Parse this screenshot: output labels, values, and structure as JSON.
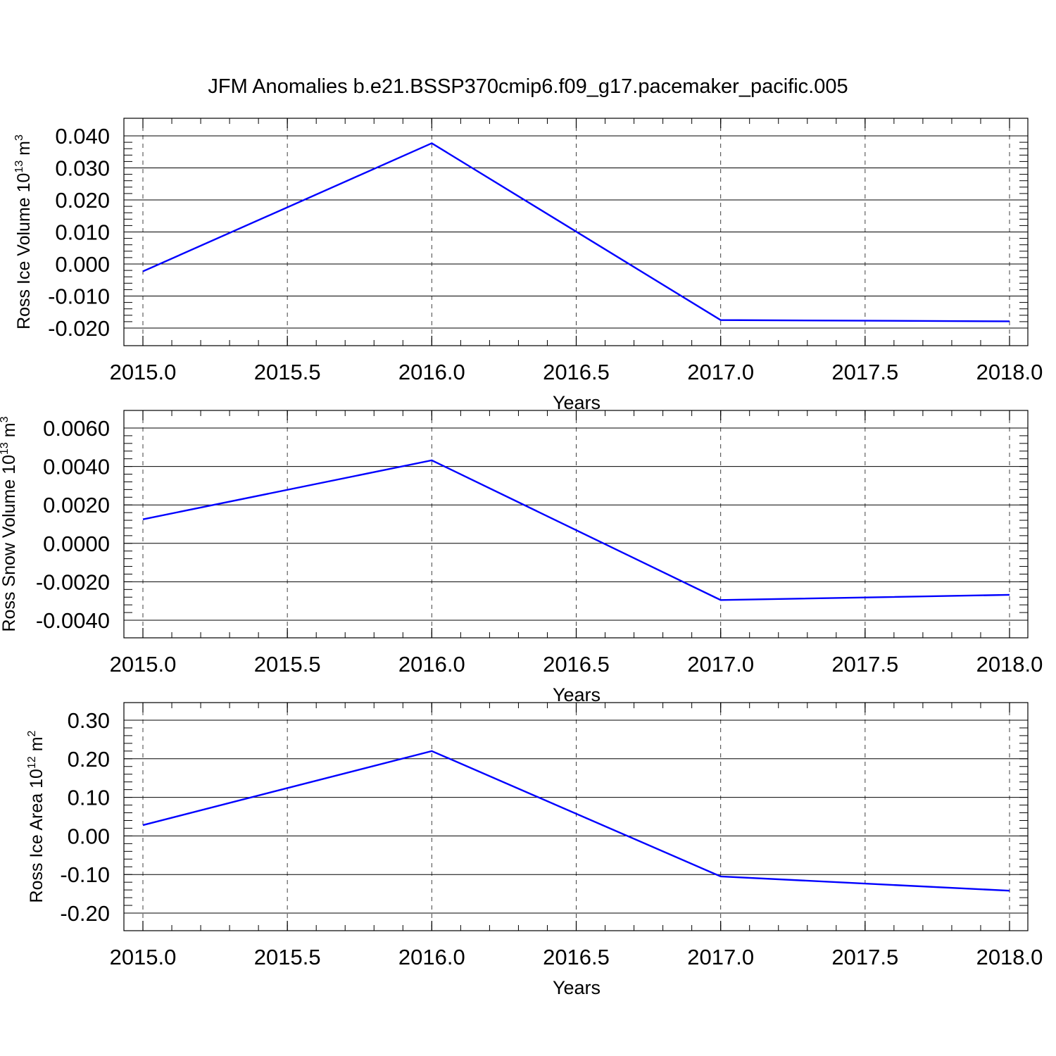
{
  "figure": {
    "title": "JFM Anomalies b.e21.BSSP370cmip6.f09_g17.pacemaker_pacific.005"
  },
  "chart_data": [
    {
      "type": "line",
      "title": "",
      "xlabel": "Years",
      "ylabel": {
        "text": "Ross Ice Volume 10",
        "sup1": "13",
        "mid": " m",
        "sup2": "3"
      },
      "xlim": [
        2015.0,
        2018.0
      ],
      "ylim": [
        -0.02,
        0.04
      ],
      "xticks": [
        2015.0,
        2015.5,
        2016.0,
        2016.5,
        2017.0,
        2017.5,
        2018.0
      ],
      "xtick_labels": [
        "2015.0",
        "2015.5",
        "2016.0",
        "2016.5",
        "2017.0",
        "2017.5",
        "2018.0"
      ],
      "yticks": [
        -0.02,
        -0.01,
        0.0,
        0.01,
        0.02,
        0.03,
        0.04
      ],
      "ytick_labels": [
        "-0.020",
        "-0.010",
        "0.000",
        "0.010",
        "0.020",
        "0.030",
        "0.040"
      ],
      "grid": "vertical dashed",
      "series": [
        {
          "color": "#0000ff",
          "x": [
            2015,
            2016,
            2017,
            2018
          ],
          "y": [
            -0.0023,
            0.0377,
            -0.0175,
            -0.0179
          ]
        }
      ]
    },
    {
      "type": "line",
      "title": "",
      "xlabel": "Years",
      "ylabel": {
        "text": "Ross Snow Volume 10",
        "sup1": "13",
        "mid": " m",
        "sup2": "3"
      },
      "xlim": [
        2015.0,
        2018.0
      ],
      "ylim": [
        -0.004,
        0.006
      ],
      "xticks": [
        2015.0,
        2015.5,
        2016.0,
        2016.5,
        2017.0,
        2017.5,
        2018.0
      ],
      "xtick_labels": [
        "2015.0",
        "2015.5",
        "2016.0",
        "2016.5",
        "2017.0",
        "2017.5",
        "2018.0"
      ],
      "yticks": [
        -0.004,
        -0.002,
        0.0,
        0.002,
        0.004,
        0.006
      ],
      "ytick_labels": [
        "-0.0040",
        "-0.0020",
        "0.0000",
        "0.0020",
        "0.0040",
        "0.0060"
      ],
      "grid": "vertical dashed",
      "series": [
        {
          "color": "#0000ff",
          "x": [
            2015,
            2016,
            2017,
            2018
          ],
          "y": [
            0.00125,
            0.00432,
            -0.00295,
            -0.00268
          ]
        }
      ]
    },
    {
      "type": "line",
      "title": "",
      "xlabel": "Years",
      "ylabel": {
        "text": "Ross Ice Area 10",
        "sup1": "12",
        "mid": " m",
        "sup2": "2"
      },
      "xlim": [
        2015.0,
        2018.0
      ],
      "ylim": [
        -0.2,
        0.3
      ],
      "xticks": [
        2015.0,
        2015.5,
        2016.0,
        2016.5,
        2017.0,
        2017.5,
        2018.0
      ],
      "xtick_labels": [
        "2015.0",
        "2015.5",
        "2016.0",
        "2016.5",
        "2017.0",
        "2017.5",
        "2018.0"
      ],
      "yticks": [
        -0.2,
        -0.1,
        0.0,
        0.1,
        0.2,
        0.3
      ],
      "ytick_labels": [
        "-0.20",
        "-0.10",
        "0.00",
        "0.10",
        "0.20",
        "0.30"
      ],
      "grid": "vertical dashed",
      "series": [
        {
          "color": "#0000ff",
          "x": [
            2015,
            2016,
            2017,
            2018
          ],
          "y": [
            0.028,
            0.22,
            -0.105,
            -0.142
          ]
        }
      ]
    }
  ]
}
